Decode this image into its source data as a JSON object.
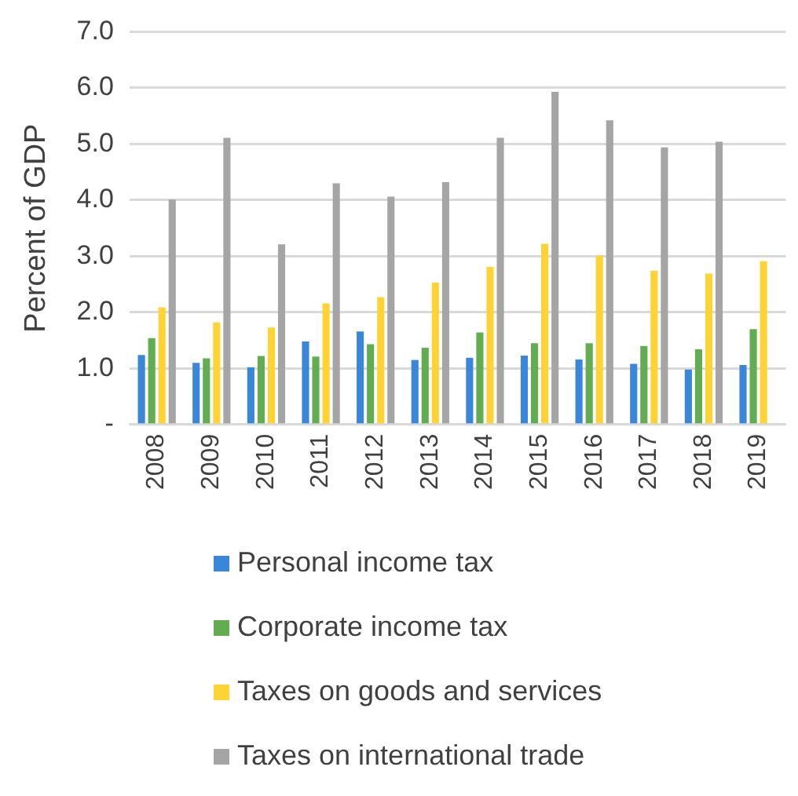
{
  "chart_data": {
    "type": "bar",
    "ylabel": "Percent of GDP",
    "categories": [
      "2008",
      "2009",
      "2010",
      "2011",
      "2012",
      "2013",
      "2014",
      "2015",
      "2016",
      "2017",
      "2018",
      "2019"
    ],
    "series": [
      {
        "name": "Personal income tax",
        "color": "#3a86d8",
        "values": [
          1.24,
          1.1,
          1.02,
          1.48,
          1.66,
          1.15,
          1.19,
          1.23,
          1.16,
          1.08,
          0.98,
          1.06
        ]
      },
      {
        "name": "Corporate income tax",
        "color": "#62ad52",
        "values": [
          1.54,
          1.18,
          1.22,
          1.21,
          1.43,
          1.37,
          1.64,
          1.45,
          1.45,
          1.4,
          1.34,
          1.7
        ]
      },
      {
        "name": "Taxes on goods and services",
        "color": "#ffd334",
        "values": [
          2.09,
          1.82,
          1.73,
          2.16,
          2.27,
          2.53,
          2.81,
          3.22,
          3.01,
          2.74,
          2.69,
          2.91
        ]
      },
      {
        "name": "Taxes on international trade",
        "color": "#a5a5a5",
        "values": [
          4.01,
          5.11,
          3.21,
          4.3,
          4.06,
          4.32,
          5.11,
          5.93,
          5.42,
          4.94,
          5.04,
          null
        ]
      }
    ],
    "ylim": [
      0,
      7
    ],
    "yticks": [
      {
        "value": 0,
        "label": "-"
      },
      {
        "value": 1,
        "label": "1.0"
      },
      {
        "value": 2,
        "label": "2.0"
      },
      {
        "value": 3,
        "label": "3.0"
      },
      {
        "value": 4,
        "label": "4.0"
      },
      {
        "value": 5,
        "label": "5.0"
      },
      {
        "value": 6,
        "label": "6.0"
      },
      {
        "value": 7,
        "label": "7.0"
      }
    ],
    "grid": "y",
    "legend": "bottom"
  }
}
